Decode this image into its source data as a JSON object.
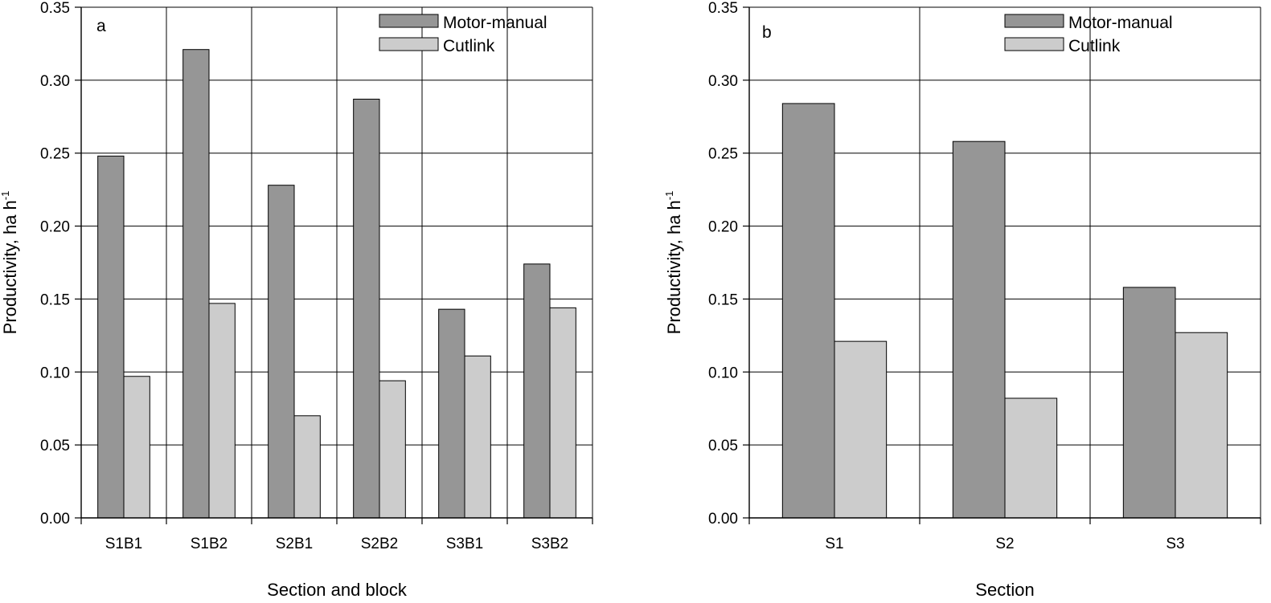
{
  "chart_data": [
    {
      "type": "bar",
      "panel_label": "a",
      "categories": [
        "S1B1",
        "S1B2",
        "S2B1",
        "S2B2",
        "S3B1",
        "S3B2"
      ],
      "series": [
        {
          "name": "Motor-manual",
          "values": [
            0.248,
            0.321,
            0.228,
            0.287,
            0.143,
            0.174
          ]
        },
        {
          "name": "Cutlink",
          "values": [
            0.097,
            0.147,
            0.07,
            0.094,
            0.111,
            0.144
          ]
        }
      ],
      "xlabel": "Section and block",
      "ylabel": "Productivity, ha h",
      "ylabel_superscript": "-1",
      "ylim": [
        0,
        0.35
      ],
      "yticks": [
        "0.00",
        "0.05",
        "0.10",
        "0.15",
        "0.20",
        "0.25",
        "0.30",
        "0.35"
      ],
      "grid": true,
      "legend_position": "top-right",
      "colors": {
        "Motor-manual": "#969696",
        "Cutlink": "#cccccc"
      }
    },
    {
      "type": "bar",
      "panel_label": "b",
      "categories": [
        "S1",
        "S2",
        "S3"
      ],
      "series": [
        {
          "name": "Motor-manual",
          "values": [
            0.284,
            0.258,
            0.158
          ]
        },
        {
          "name": "Cutlink",
          "values": [
            0.121,
            0.082,
            0.127
          ]
        }
      ],
      "xlabel": "Section",
      "ylabel": "Productivity, ha h",
      "ylabel_superscript": "-1",
      "ylim": [
        0,
        0.35
      ],
      "yticks": [
        "0.00",
        "0.05",
        "0.10",
        "0.15",
        "0.20",
        "0.25",
        "0.30",
        "0.35"
      ],
      "grid": true,
      "legend_position": "top-right",
      "colors": {
        "Motor-manual": "#969696",
        "Cutlink": "#cccccc"
      }
    }
  ]
}
